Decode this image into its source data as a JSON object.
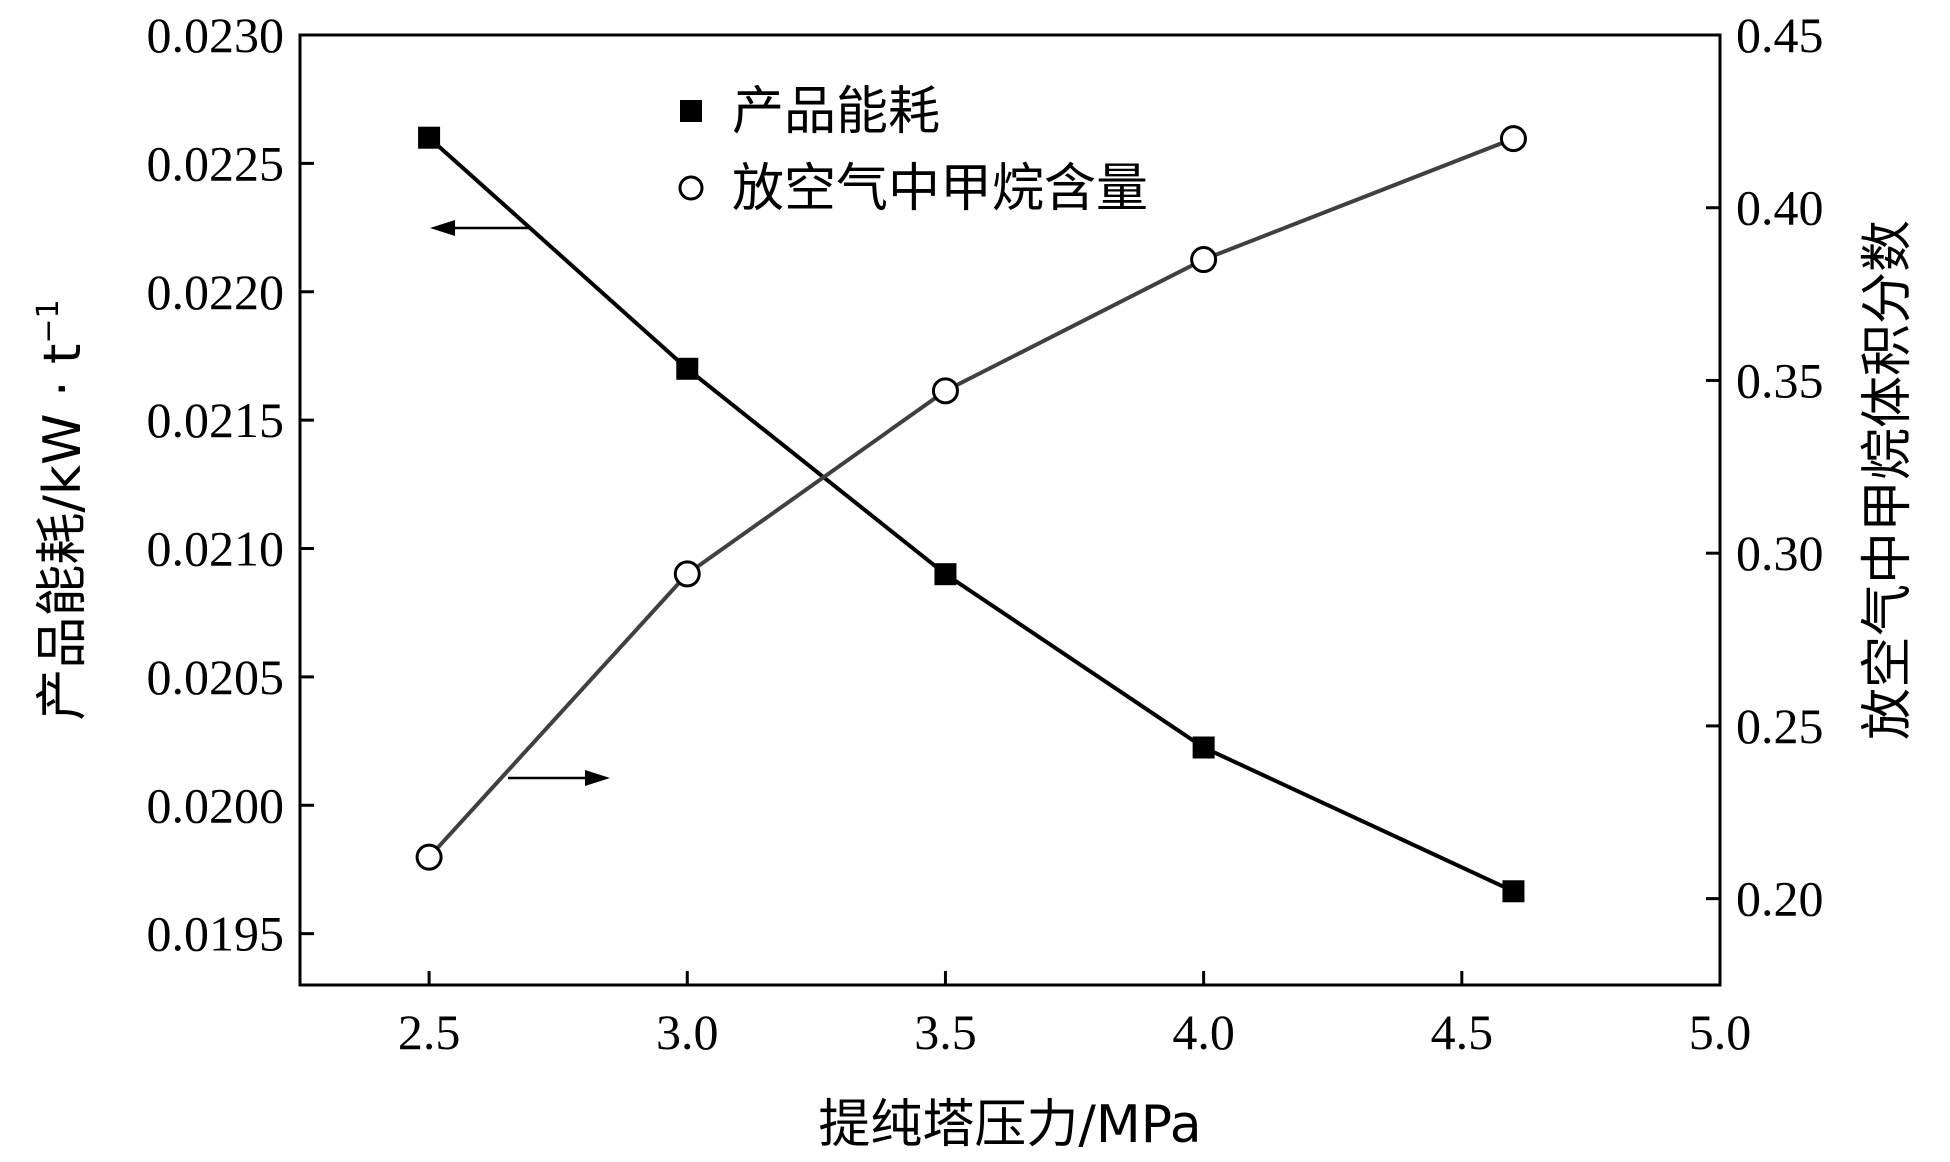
{
  "chart_data": {
    "type": "line",
    "x": [
      2.5,
      3.0,
      3.5,
      4.0,
      4.6
    ],
    "xlabel": "提纯塔压力/MPa",
    "xlim": [
      2.25,
      5.0
    ],
    "xticks": [
      "2.5",
      "3.0",
      "3.5",
      "4.0",
      "4.5",
      "5.0"
    ],
    "y_left": {
      "label_main": "产品能耗/",
      "label_unit": "kW · t",
      "label_sup": "−1",
      "ylim": [
        0.0193,
        0.023
      ],
      "ticks": [
        "0.0195",
        "0.0200",
        "0.0205",
        "0.0210",
        "0.0215",
        "0.0220",
        "0.0225",
        "0.0230"
      ]
    },
    "y_right": {
      "label": "放空气中甲烷体积分数",
      "ylim": [
        0.175,
        0.45
      ],
      "ticks": [
        "0.20",
        "0.25",
        "0.30",
        "0.35",
        "0.40",
        "0.45"
      ]
    },
    "series": [
      {
        "name": "产品能耗",
        "axis": "left",
        "marker": "filled-square",
        "color": "#000000",
        "values": [
          0.0226,
          0.0217,
          0.0209,
          0.020225,
          0.019665
        ]
      },
      {
        "name": "放空气中甲烷含量",
        "axis": "right",
        "marker": "open-circle",
        "color": "#404040",
        "values": [
          0.212,
          0.294,
          0.347,
          0.385,
          0.42
        ]
      }
    ],
    "legend_position": "top-center",
    "grid": false
  }
}
